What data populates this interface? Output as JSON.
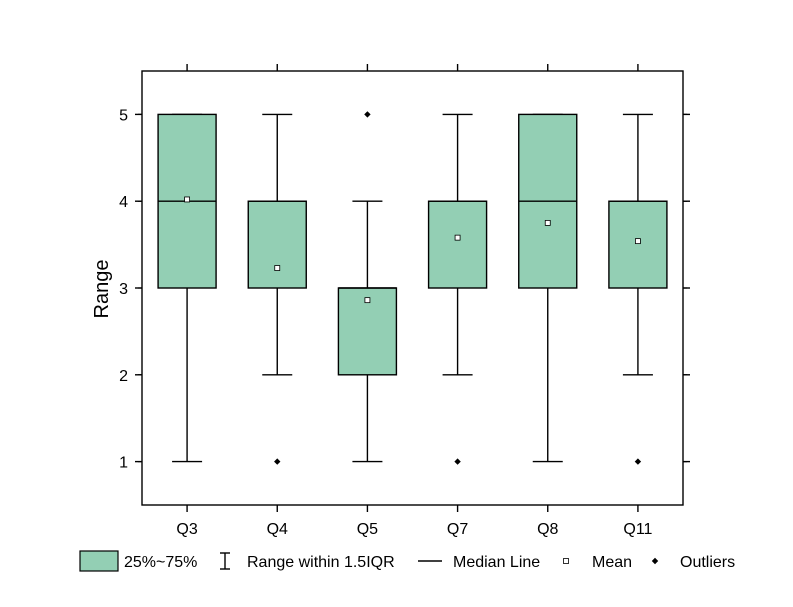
{
  "chart_data": {
    "type": "box",
    "title": "",
    "xlabel": "",
    "ylabel": "Range",
    "ylim": [
      0.5,
      5.5
    ],
    "yticks": [
      1,
      2,
      3,
      4,
      5
    ],
    "categories": [
      "Q3",
      "Q4",
      "Q5",
      "Q7",
      "Q8",
      "Q11"
    ],
    "boxes": [
      {
        "category": "Q3",
        "whisker_low": 1,
        "q1": 3,
        "median": 4,
        "q3": 5,
        "whisker_high": 5,
        "mean": 4.02,
        "outliers": []
      },
      {
        "category": "Q4",
        "whisker_low": 2,
        "q1": 3,
        "median": 4,
        "q3": 4,
        "whisker_high": 5,
        "mean": 3.23,
        "outliers": [
          1
        ]
      },
      {
        "category": "Q5",
        "whisker_low": 1,
        "q1": 2,
        "median": 3,
        "q3": 3,
        "whisker_high": 4,
        "mean": 2.86,
        "outliers": [
          5
        ]
      },
      {
        "category": "Q7",
        "whisker_low": 2,
        "q1": 3,
        "median": 4,
        "q3": 4,
        "whisker_high": 5,
        "mean": 3.58,
        "outliers": [
          1
        ]
      },
      {
        "category": "Q8",
        "whisker_low": 1,
        "q1": 3,
        "median": 4,
        "q3": 5,
        "whisker_high": 5,
        "mean": 3.75,
        "outliers": []
      },
      {
        "category": "Q11",
        "whisker_low": 2,
        "q1": 3,
        "median": 4,
        "q3": 4,
        "whisker_high": 5,
        "mean": 3.54,
        "outliers": [
          1
        ]
      }
    ],
    "box_color": "#93cfb4",
    "grid": false,
    "legend_placement": "bottom",
    "legend": [
      {
        "key": "box",
        "label": "25%~75%"
      },
      {
        "key": "whisker",
        "label": "Range within 1.5IQR"
      },
      {
        "key": "median",
        "label": "Median Line"
      },
      {
        "key": "mean",
        "label": "Mean"
      },
      {
        "key": "outlier",
        "label": "Outliers"
      }
    ]
  }
}
